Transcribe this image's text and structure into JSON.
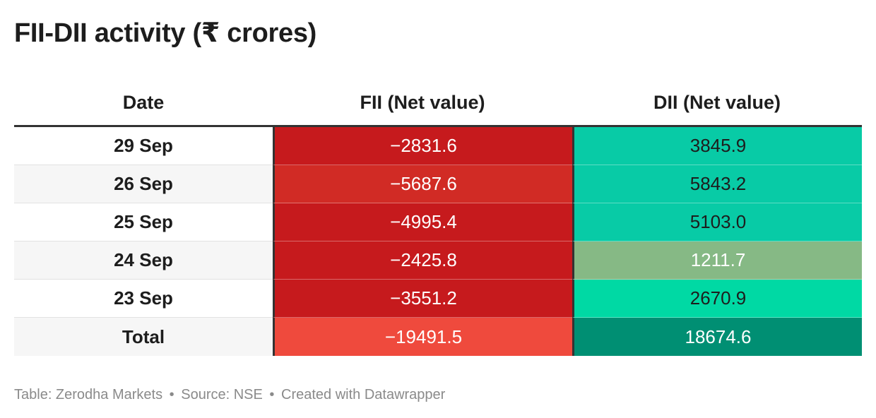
{
  "title": "FII-DII activity (₹ crores)",
  "footer": {
    "table_credit": "Table: Zerodha Markets",
    "source": "Source: NSE",
    "created": "Created with Datawrapper",
    "separator": "•"
  },
  "colors": {
    "fii_dark": "#c61a1d",
    "fii_mid": "#d12b25",
    "fii_total": "#ef4a3d",
    "dii_teal": "#08cba6",
    "dii_olive": "#86b985",
    "dii_bright": "#00d9a4",
    "dii_total": "#008f73",
    "header_rule": "#333333"
  },
  "chart_data": {
    "type": "table",
    "title": "FII-DII activity (₹ crores)",
    "columns": [
      "Date",
      "FII (Net value)",
      "DII (Net value)"
    ],
    "rows": [
      {
        "date": "29 Sep",
        "fii": "−2831.6",
        "dii": "3845.9"
      },
      {
        "date": "26 Sep",
        "fii": "−5687.6",
        "dii": "5843.2"
      },
      {
        "date": "25 Sep",
        "fii": "−4995.4",
        "dii": "5103.0"
      },
      {
        "date": "24 Sep",
        "fii": "−2425.8",
        "dii": "1211.7"
      },
      {
        "date": "23 Sep",
        "fii": "−3551.2",
        "dii": "2670.9"
      }
    ],
    "total": {
      "date": "Total",
      "fii": "−19491.5",
      "dii": "18674.6"
    }
  }
}
